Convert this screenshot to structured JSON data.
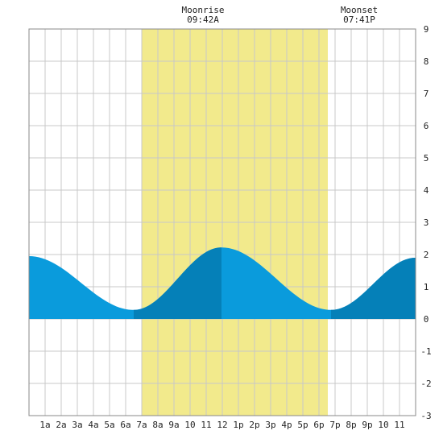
{
  "chart_data": {
    "type": "area",
    "title": "",
    "xlabel": "",
    "ylabel": "",
    "x_range_hours": [
      0,
      24
    ],
    "ylim": [
      -3,
      9
    ],
    "y_ticks": [
      -3,
      -2,
      -1,
      0,
      1,
      2,
      3,
      4,
      5,
      6,
      7,
      8,
      9
    ],
    "x_tick_labels": [
      "1a",
      "2a",
      "3a",
      "4a",
      "5a",
      "6a",
      "7a",
      "8a",
      "9a",
      "10",
      "11",
      "12",
      "1p",
      "2p",
      "3p",
      "4p",
      "5p",
      "6p",
      "7p",
      "8p",
      "9p",
      "10",
      "11"
    ],
    "grid": true,
    "moon": {
      "rise_label": "Moonrise",
      "rise_time": "09:42A",
      "set_label": "Moonset",
      "set_time": "07:41P",
      "highlight_start_hour": 7.0,
      "highlight_end_hour": 18.55,
      "highlight_color": "#f2ea8c"
    },
    "tide": {
      "color_light": "#0a9bdc",
      "color_dark": "#0580b8",
      "extremes": [
        {
          "hour": 0.0,
          "value": 1.95
        },
        {
          "hour": 6.5,
          "value": 0.28
        },
        {
          "hour": 11.95,
          "value": 2.22
        },
        {
          "hour": 18.75,
          "value": 0.28
        },
        {
          "hour": 24.0,
          "value": 1.9
        }
      ],
      "dark_bands": [
        [
          6.5,
          11.95
        ],
        [
          18.75,
          24.0
        ]
      ]
    },
    "moonrise_text_x_hour": 10.8,
    "moonset_text_x_hour": 20.5
  }
}
